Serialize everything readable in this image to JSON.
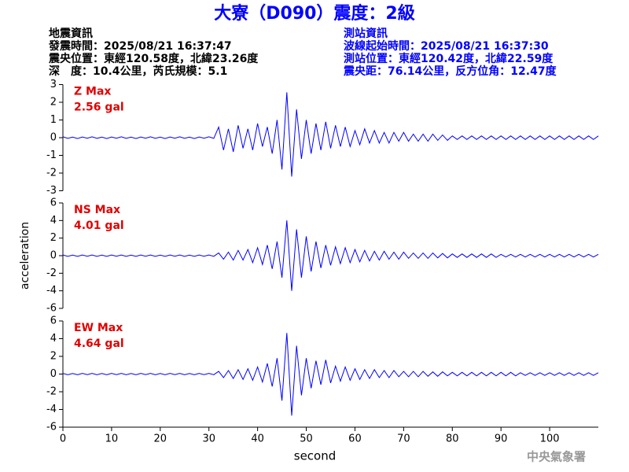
{
  "header": {
    "title": "大寮（D090）震度：2級",
    "left_lines": [
      "地震資訊",
      "發震時間：2025/08/21 16:37:47",
      "震央位置：東經120.58度，北緯23.26度",
      "深　度：10.4公里，芮氏規模：5.1"
    ],
    "right_lines": [
      "測站資訊",
      "波線起始時間：2025/08/21 16:37:30",
      "測站位置：東經120.42度，北緯22.59度",
      "震央距：76.14公里，反方位角：12.47度"
    ]
  },
  "footer": "中央氣象署",
  "chart_data": [
    {
      "type": "line",
      "annotations": [
        "Z Max",
        "2.56 gal"
      ],
      "color": "#0000ff",
      "xlim": [
        0,
        110
      ],
      "ylim": [
        -3,
        3
      ],
      "yticks": [
        -3,
        -2,
        -1,
        0,
        1,
        2,
        3
      ],
      "x": [
        0,
        1,
        2,
        3,
        4,
        5,
        6,
        7,
        8,
        9,
        10,
        11,
        12,
        13,
        14,
        15,
        16,
        17,
        18,
        19,
        20,
        21,
        22,
        23,
        24,
        25,
        26,
        27,
        28,
        29,
        30,
        31,
        32,
        33,
        34,
        35,
        36,
        37,
        38,
        39,
        40,
        41,
        42,
        43,
        44,
        45,
        46,
        47,
        48,
        49,
        50,
        51,
        52,
        53,
        54,
        55,
        56,
        57,
        58,
        59,
        60,
        61,
        62,
        63,
        64,
        65,
        66,
        67,
        68,
        69,
        70,
        71,
        72,
        73,
        74,
        75,
        76,
        77,
        78,
        79,
        80,
        81,
        82,
        83,
        84,
        85,
        86,
        87,
        88,
        89,
        90,
        91,
        92,
        93,
        94,
        95,
        96,
        97,
        98,
        99,
        100,
        101,
        102,
        103,
        104,
        105,
        106,
        107,
        108,
        109,
        110
      ],
      "values": [
        0.05,
        -0.04,
        0.03,
        -0.05,
        0.04,
        -0.03,
        0.05,
        -0.04,
        0.03,
        -0.05,
        0.04,
        -0.03,
        0.05,
        -0.04,
        0.03,
        -0.05,
        0.04,
        -0.03,
        0.05,
        -0.04,
        0.03,
        -0.05,
        0.04,
        -0.03,
        0.05,
        -0.04,
        0.03,
        -0.05,
        0.04,
        -0.03,
        0.05,
        -0.04,
        0.6,
        -0.7,
        0.5,
        -0.8,
        0.7,
        -0.6,
        0.5,
        -0.7,
        0.8,
        -0.5,
        0.6,
        -0.9,
        1.0,
        -1.8,
        2.56,
        -2.2,
        1.6,
        -1.2,
        1.0,
        -0.9,
        0.8,
        -0.7,
        0.9,
        -0.6,
        0.7,
        -0.5,
        0.6,
        -0.5,
        0.4,
        -0.4,
        0.5,
        -0.3,
        0.4,
        -0.3,
        0.3,
        -0.3,
        0.3,
        -0.2,
        0.3,
        -0.2,
        0.2,
        -0.2,
        0.2,
        -0.2,
        0.2,
        -0.15,
        0.15,
        -0.15,
        0.1,
        -0.1,
        0.1,
        -0.1,
        0.1,
        -0.1,
        0.1,
        -0.1,
        0.1,
        -0.1,
        0.1,
        -0.1,
        0.1,
        -0.1,
        0.1,
        -0.1,
        0.1,
        -0.1,
        0.1,
        -0.1,
        0.1,
        -0.1,
        0.1,
        -0.1,
        0.1,
        -0.1,
        0.1,
        -0.1,
        0.1,
        -0.1,
        0.1
      ]
    },
    {
      "type": "line",
      "annotations": [
        "NS Max",
        "4.01 gal"
      ],
      "y_label": "acceleration",
      "color": "#0000ff",
      "xlim": [
        0,
        110
      ],
      "ylim": [
        -6,
        6
      ],
      "yticks": [
        -6,
        -4,
        -2,
        0,
        2,
        4,
        6
      ],
      "x": [
        0,
        1,
        2,
        3,
        4,
        5,
        6,
        7,
        8,
        9,
        10,
        11,
        12,
        13,
        14,
        15,
        16,
        17,
        18,
        19,
        20,
        21,
        22,
        23,
        24,
        25,
        26,
        27,
        28,
        29,
        30,
        31,
        32,
        33,
        34,
        35,
        36,
        37,
        38,
        39,
        40,
        41,
        42,
        43,
        44,
        45,
        46,
        47,
        48,
        49,
        50,
        51,
        52,
        53,
        54,
        55,
        56,
        57,
        58,
        59,
        60,
        61,
        62,
        63,
        64,
        65,
        66,
        67,
        68,
        69,
        70,
        71,
        72,
        73,
        74,
        75,
        76,
        77,
        78,
        79,
        80,
        81,
        82,
        83,
        84,
        85,
        86,
        87,
        88,
        89,
        90,
        91,
        92,
        93,
        94,
        95,
        96,
        97,
        98,
        99,
        100,
        101,
        102,
        103,
        104,
        105,
        106,
        107,
        108,
        109,
        110
      ],
      "values": [
        0.08,
        -0.07,
        0.06,
        -0.08,
        0.07,
        -0.06,
        0.08,
        -0.07,
        0.06,
        -0.08,
        0.07,
        -0.06,
        0.08,
        -0.07,
        0.06,
        -0.08,
        0.07,
        -0.06,
        0.08,
        -0.07,
        0.06,
        -0.08,
        0.07,
        -0.06,
        0.08,
        -0.07,
        0.06,
        -0.08,
        0.07,
        -0.06,
        0.08,
        -0.07,
        0.3,
        -0.4,
        0.4,
        -0.5,
        0.6,
        -0.5,
        0.7,
        -0.8,
        0.9,
        -1.0,
        1.2,
        -1.5,
        1.6,
        -2.5,
        4.01,
        -4.0,
        3.0,
        -2.5,
        2.2,
        -1.8,
        1.6,
        -1.4,
        1.2,
        -1.1,
        1.0,
        -0.9,
        0.9,
        -0.8,
        0.7,
        -0.7,
        0.6,
        -0.6,
        0.5,
        -0.5,
        0.5,
        -0.4,
        0.4,
        -0.4,
        0.4,
        -0.3,
        0.3,
        -0.3,
        0.3,
        -0.3,
        0.3,
        -0.25,
        0.25,
        -0.25,
        0.2,
        -0.2,
        0.2,
        -0.2,
        0.2,
        -0.2,
        0.2,
        -0.2,
        0.2,
        -0.2,
        0.15,
        -0.15,
        0.15,
        -0.15,
        0.15,
        -0.15,
        0.15,
        -0.15,
        0.15,
        -0.15,
        0.15,
        -0.15,
        0.15,
        -0.15,
        0.15,
        -0.15,
        0.15,
        -0.15,
        0.15,
        -0.15,
        0.15
      ]
    },
    {
      "type": "line",
      "annotations": [
        "EW Max",
        "4.64 gal"
      ],
      "x_label": "second",
      "color": "#0000ff",
      "xlim": [
        0,
        110
      ],
      "ylim": [
        -6,
        6
      ],
      "yticks": [
        -6,
        -4,
        -2,
        0,
        2,
        4,
        6
      ],
      "xticks": [
        0,
        10,
        20,
        30,
        40,
        50,
        60,
        70,
        80,
        90,
        100
      ],
      "x": [
        0,
        1,
        2,
        3,
        4,
        5,
        6,
        7,
        8,
        9,
        10,
        11,
        12,
        13,
        14,
        15,
        16,
        17,
        18,
        19,
        20,
        21,
        22,
        23,
        24,
        25,
        26,
        27,
        28,
        29,
        30,
        31,
        32,
        33,
        34,
        35,
        36,
        37,
        38,
        39,
        40,
        41,
        42,
        43,
        44,
        45,
        46,
        47,
        48,
        49,
        50,
        51,
        52,
        53,
        54,
        55,
        56,
        57,
        58,
        59,
        60,
        61,
        62,
        63,
        64,
        65,
        66,
        67,
        68,
        69,
        70,
        71,
        72,
        73,
        74,
        75,
        76,
        77,
        78,
        79,
        80,
        81,
        82,
        83,
        84,
        85,
        86,
        87,
        88,
        89,
        90,
        91,
        92,
        93,
        94,
        95,
        96,
        97,
        98,
        99,
        100,
        101,
        102,
        103,
        104,
        105,
        106,
        107,
        108,
        109,
        110
      ],
      "values": [
        0.08,
        -0.07,
        0.06,
        -0.08,
        0.07,
        -0.06,
        0.08,
        -0.07,
        0.06,
        -0.08,
        0.07,
        -0.06,
        0.08,
        -0.07,
        0.06,
        -0.08,
        0.07,
        -0.06,
        0.08,
        -0.07,
        0.06,
        -0.08,
        0.07,
        -0.06,
        0.08,
        -0.07,
        0.06,
        -0.08,
        0.07,
        -0.06,
        0.08,
        -0.07,
        0.3,
        -0.4,
        0.4,
        -0.5,
        0.5,
        -0.6,
        0.6,
        -0.7,
        0.8,
        -0.9,
        1.2,
        -1.4,
        1.8,
        -3.0,
        4.64,
        -4.7,
        3.2,
        -2.4,
        1.8,
        -1.6,
        1.5,
        -1.2,
        1.6,
        -1.0,
        0.9,
        -0.8,
        0.8,
        -0.7,
        0.6,
        -0.6,
        0.5,
        -0.5,
        0.5,
        -0.4,
        0.4,
        -0.4,
        0.4,
        -0.3,
        0.3,
        -0.3,
        0.3,
        -0.3,
        0.3,
        -0.25,
        0.25,
        -0.25,
        0.25,
        -0.2,
        0.2,
        -0.2,
        0.2,
        -0.2,
        0.2,
        -0.2,
        0.2,
        -0.2,
        0.2,
        -0.2,
        0.2,
        -0.2,
        0.2,
        -0.2,
        0.15,
        -0.15,
        0.15,
        -0.15,
        0.15,
        -0.15,
        0.15,
        -0.15,
        0.15,
        -0.15,
        0.15,
        -0.15,
        0.15,
        -0.15,
        0.15,
        -0.15,
        0.15
      ]
    }
  ]
}
